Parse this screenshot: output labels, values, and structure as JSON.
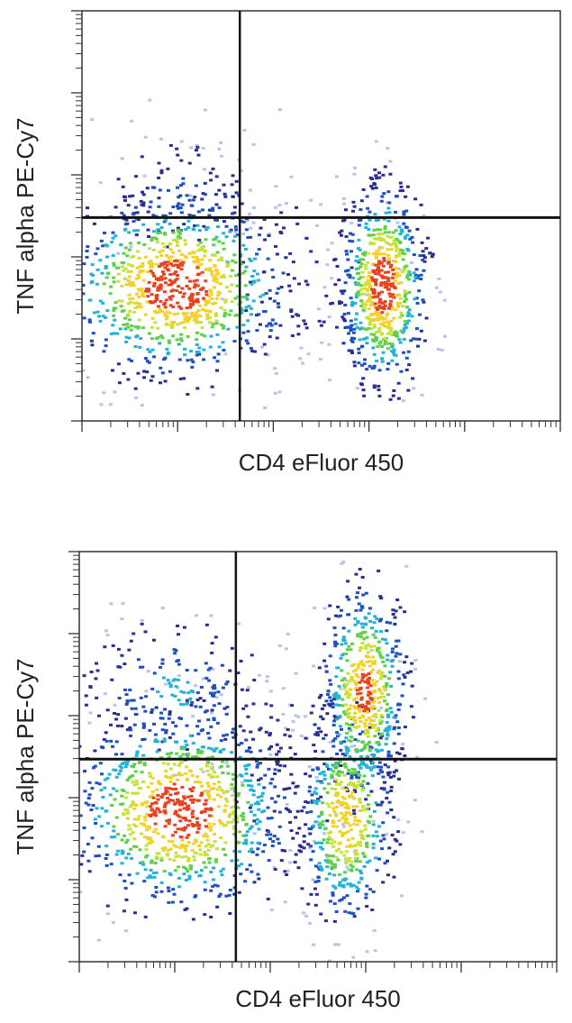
{
  "chart_data": [
    {
      "type": "density",
      "x_label": "CD4 eFluor 450",
      "y_label": "TNF alpha PE-Cy7",
      "xlim": [
        0,
        5
      ],
      "ylim": [
        0,
        5
      ],
      "xticks": [
        0,
        1,
        2,
        3,
        4,
        5
      ],
      "yticks": [
        0,
        1,
        2,
        3,
        4,
        5
      ],
      "minor_ticks": "log",
      "quadrant_x": 1.65,
      "quadrant_y": 2.48,
      "populations": [
        {
          "x": 0.98,
          "y": 1.64,
          "sx": 0.6,
          "sy": 0.55,
          "n": 900
        },
        {
          "x": 1.0,
          "y": 2.7,
          "sx": 0.45,
          "sy": 0.4,
          "n": 120
        },
        {
          "x": 3.15,
          "y": 1.65,
          "sx": 0.22,
          "sy": 0.62,
          "n": 650
        },
        {
          "x": 2.3,
          "y": 1.8,
          "sx": 0.5,
          "sy": 0.6,
          "n": 80
        }
      ]
    },
    {
      "type": "density",
      "x_label": "CD4 eFluor 450",
      "y_label": "TNF alpha PE-Cy7",
      "xlim": [
        0,
        5
      ],
      "ylim": [
        0,
        5
      ],
      "xticks": [
        0,
        1,
        2,
        3,
        4,
        5
      ],
      "yticks": [
        0,
        1,
        2,
        3,
        4,
        5
      ],
      "minor_ticks": "log",
      "quadrant_x": 1.64,
      "quadrant_y": 2.47,
      "populations": [
        {
          "x": 1.06,
          "y": 1.84,
          "sx": 0.58,
          "sy": 0.6,
          "n": 950
        },
        {
          "x": 1.0,
          "y": 3.3,
          "sx": 0.5,
          "sy": 0.45,
          "n": 200
        },
        {
          "x": 2.99,
          "y": 3.3,
          "sx": 0.22,
          "sy": 0.65,
          "n": 550
        },
        {
          "x": 2.8,
          "y": 1.75,
          "sx": 0.25,
          "sy": 0.65,
          "n": 500
        },
        {
          "x": 2.2,
          "y": 2.4,
          "sx": 0.45,
          "sy": 0.7,
          "n": 80
        }
      ]
    }
  ]
}
